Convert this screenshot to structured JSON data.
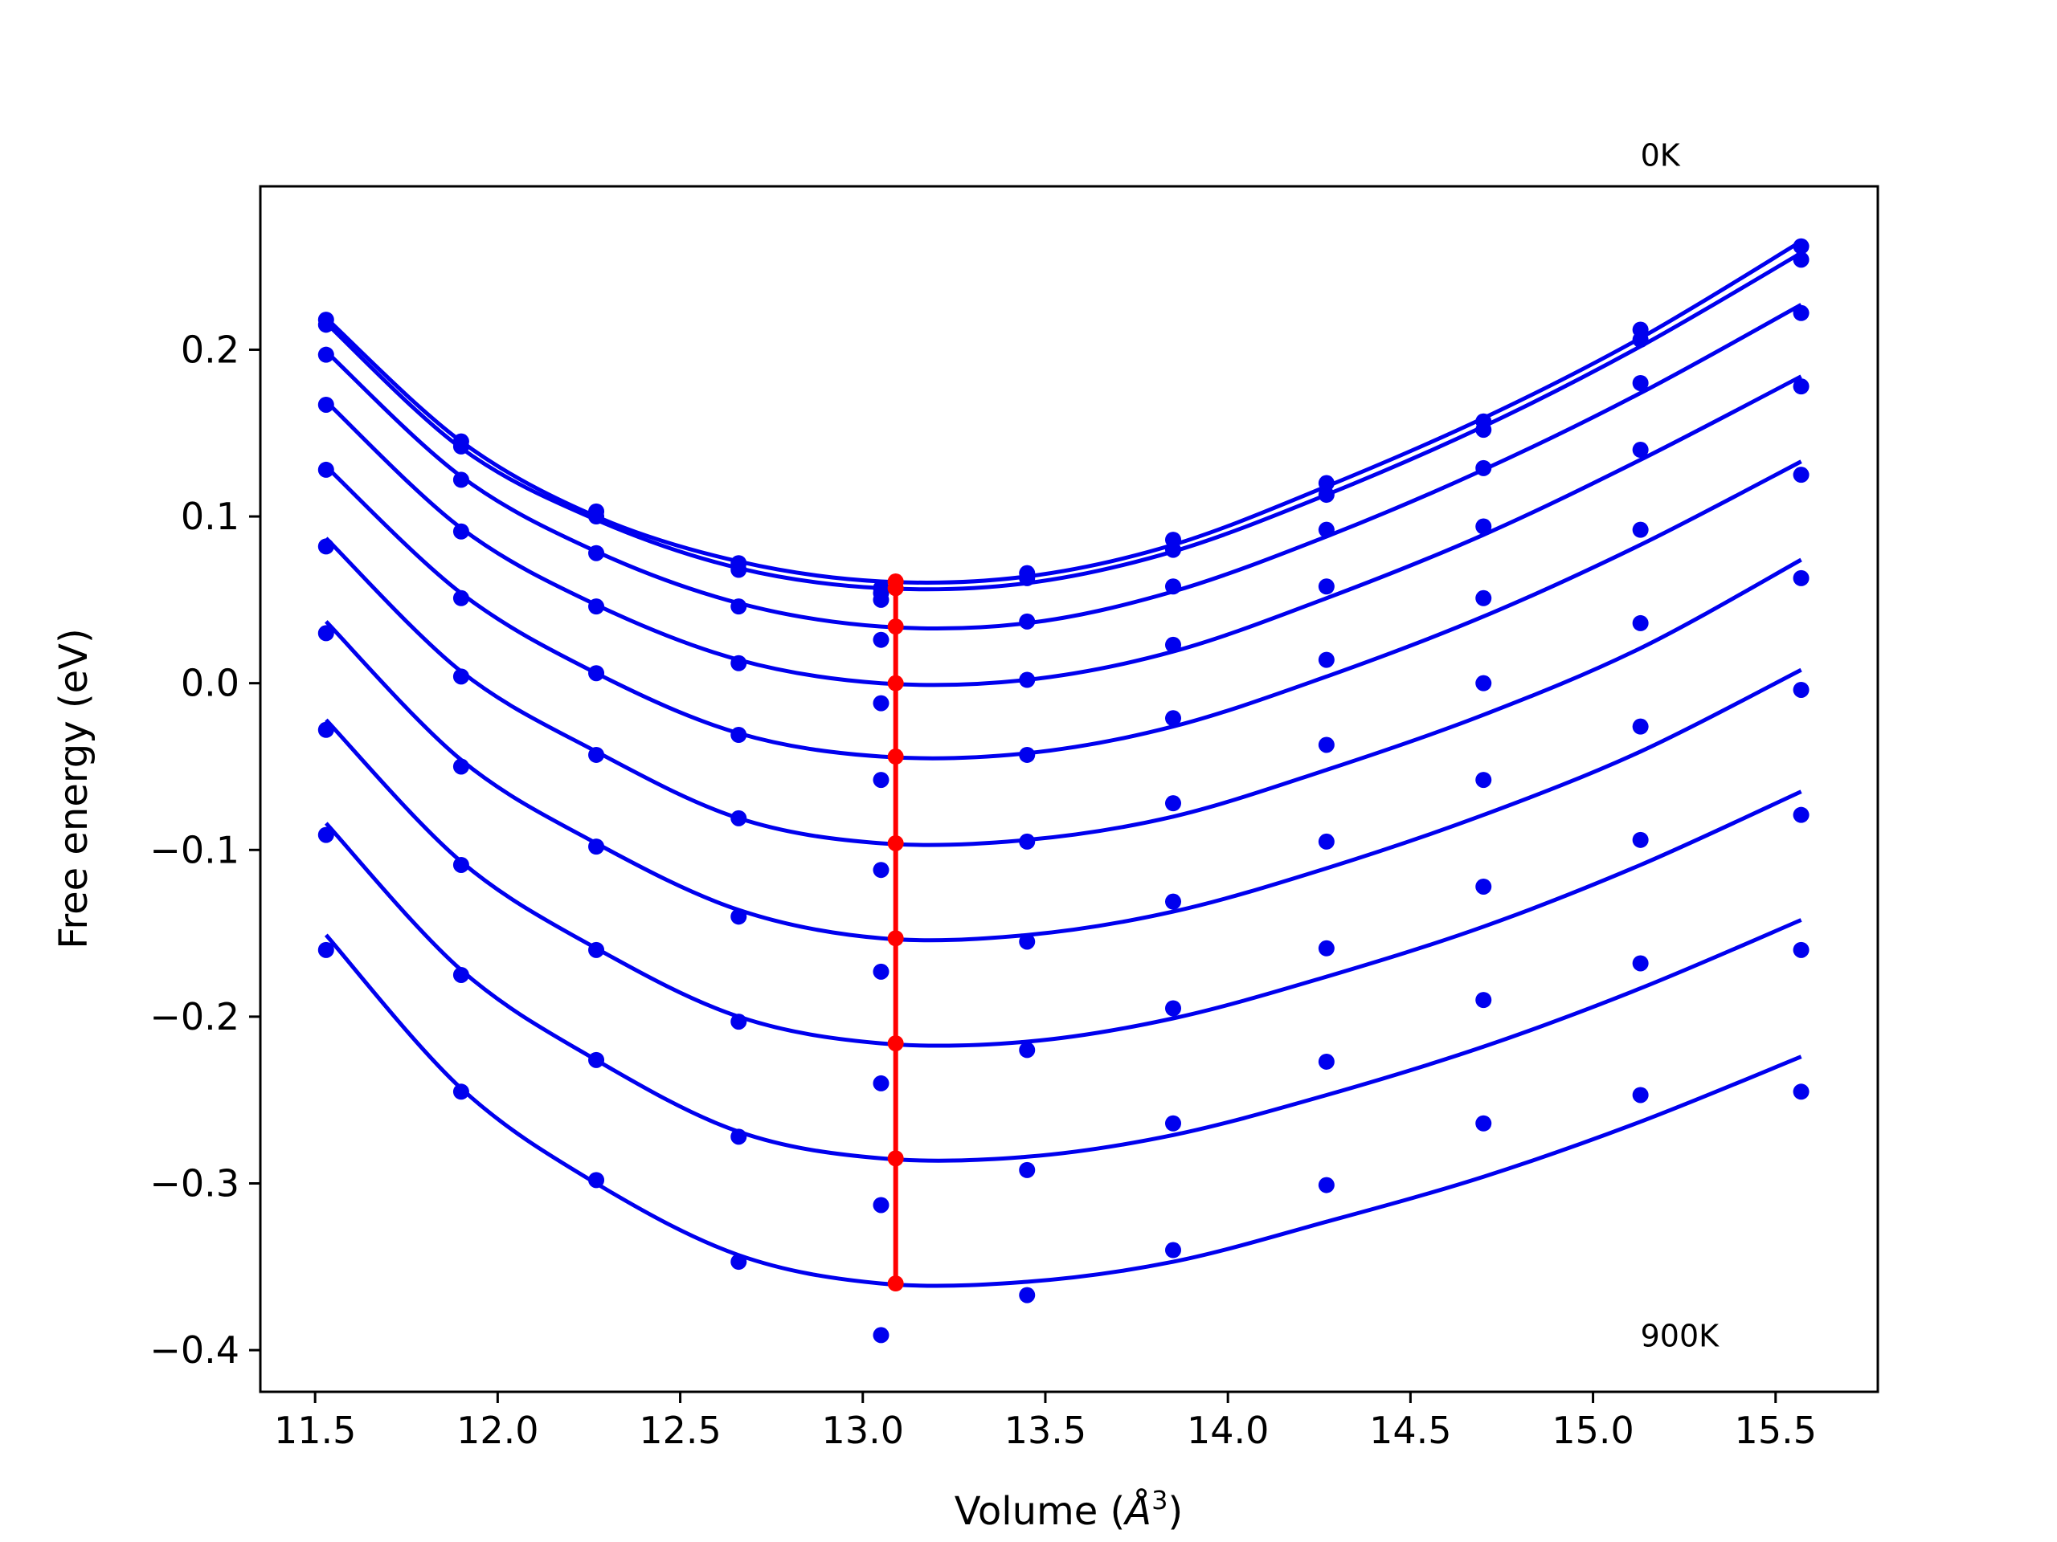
{
  "chart_data": {
    "type": "line",
    "title": "",
    "xlabel_text": "Volume (",
    "xlabel_symbol": "Å",
    "xlabel_exp": "3",
    "xlabel_close": ")",
    "ylabel": "Free energy (eV)",
    "xlim": [
      11.35,
      15.78
    ],
    "ylim": [
      -0.425,
      0.298
    ],
    "xticks": [
      11.5,
      12.0,
      12.5,
      13.0,
      13.5,
      14.0,
      14.5,
      15.0,
      15.5
    ],
    "xtick_labels": [
      "11.5",
      "12.0",
      "12.5",
      "13.0",
      "13.5",
      "14.0",
      "14.5",
      "15.0",
      "15.5"
    ],
    "yticks": [
      -0.4,
      -0.3,
      -0.2,
      -0.1,
      0.0,
      0.1,
      0.2
    ],
    "ytick_labels": [
      "−0.4",
      "−0.3",
      "−0.2",
      "−0.1",
      "0.0",
      "0.1",
      "0.2"
    ],
    "grid": false,
    "annotations": [
      {
        "text": "0K",
        "x": 15.13,
        "y": 0.317
      },
      {
        "text": "900K",
        "x": 15.13,
        "y": -0.391
      }
    ],
    "colors": {
      "series": "#0000ee",
      "minimum": "#ff0000"
    },
    "volumes": [
      11.53,
      11.9,
      12.27,
      12.66,
      13.05,
      13.45,
      13.85,
      14.27,
      14.7,
      15.13,
      15.57
    ],
    "series": [
      {
        "points": [
          0.218,
          0.145,
          0.103,
          0.072,
          0.057,
          0.066,
          0.086,
          0.12,
          0.157,
          0.212,
          0.262
        ],
        "fit": [
          0.219,
          0.145,
          0.1,
          0.073,
          0.061,
          0.064,
          0.083,
          0.118,
          0.159,
          0.207,
          0.265
        ],
        "min_v": 13.09,
        "min_f": 0.061
      },
      {
        "points": [
          0.215,
          0.142,
          0.1,
          0.068,
          0.054,
          0.063,
          0.08,
          0.113,
          0.152,
          0.206,
          0.254
        ],
        "fit": [
          0.216,
          0.141,
          0.098,
          0.069,
          0.057,
          0.06,
          0.079,
          0.113,
          0.154,
          0.202,
          0.258
        ],
        "min_v": 13.09,
        "min_f": 0.057
      },
      {
        "points": [
          0.197,
          0.122,
          0.078,
          0.046,
          0.05,
          0.037,
          0.058,
          0.092,
          0.129,
          0.18,
          0.222
        ],
        "fit": [
          0.199,
          0.124,
          0.079,
          0.048,
          0.034,
          0.036,
          0.055,
          0.088,
          0.128,
          0.174,
          0.227
        ],
        "min_v": 13.09,
        "min_f": 0.034
      },
      {
        "points": [
          0.167,
          0.091,
          0.046,
          0.012,
          0.026,
          0.002,
          0.023,
          0.058,
          0.094,
          0.14,
          0.178
        ],
        "fit": [
          0.169,
          0.093,
          0.047,
          0.014,
          0.0,
          0.002,
          0.019,
          0.051,
          0.089,
          0.134,
          0.184
        ],
        "min_v": 13.09,
        "min_f": 0.0
      },
      {
        "points": [
          0.128,
          0.051,
          0.006,
          -0.031,
          -0.012,
          -0.043,
          -0.021,
          0.014,
          0.051,
          0.092,
          0.125
        ],
        "fit": [
          0.13,
          0.054,
          0.006,
          -0.03,
          -0.044,
          -0.042,
          -0.026,
          0.004,
          0.04,
          0.083,
          0.133
        ],
        "min_v": 13.09,
        "min_f": -0.044
      },
      {
        "points": [
          0.082,
          0.004,
          -0.043,
          -0.081,
          -0.058,
          -0.095,
          -0.072,
          -0.037,
          0.0,
          0.036,
          0.063
        ],
        "fit": [
          0.087,
          0.007,
          -0.041,
          -0.081,
          -0.096,
          -0.094,
          -0.08,
          -0.052,
          -0.019,
          0.021,
          0.074
        ],
        "min_v": 13.09,
        "min_f": -0.096
      },
      {
        "points": [
          0.03,
          -0.05,
          -0.098,
          -0.14,
          -0.112,
          -0.155,
          -0.131,
          -0.095,
          -0.058,
          -0.026,
          -0.004
        ],
        "fit": [
          0.037,
          -0.046,
          -0.096,
          -0.136,
          -0.153,
          -0.151,
          -0.137,
          -0.111,
          -0.079,
          -0.041,
          0.008
        ],
        "min_v": 13.09,
        "min_f": -0.153
      },
      {
        "points": [
          -0.028,
          -0.109,
          -0.16,
          -0.203,
          -0.173,
          -0.22,
          -0.195,
          -0.159,
          -0.122,
          -0.094,
          -0.079
        ],
        "fit": [
          -0.022,
          -0.107,
          -0.159,
          -0.2,
          -0.216,
          -0.215,
          -0.201,
          -0.176,
          -0.146,
          -0.109,
          -0.065
        ],
        "min_v": 13.09,
        "min_f": -0.216
      },
      {
        "points": [
          -0.091,
          -0.175,
          -0.226,
          -0.272,
          -0.24,
          -0.292,
          -0.264,
          -0.227,
          -0.19,
          -0.168,
          -0.16
        ],
        "fit": [
          -0.084,
          -0.172,
          -0.226,
          -0.269,
          -0.285,
          -0.284,
          -0.271,
          -0.247,
          -0.218,
          -0.183,
          -0.142
        ],
        "min_v": 13.09,
        "min_f": -0.285
      },
      {
        "points": [
          -0.16,
          -0.245,
          -0.298,
          -0.347,
          -0.313,
          -0.367,
          -0.34,
          -0.301,
          -0.264,
          -0.247,
          -0.245
        ],
        "fit": [
          -0.151,
          -0.243,
          -0.3,
          -0.343,
          -0.36,
          -0.359,
          -0.347,
          -0.323,
          -0.296,
          -0.263,
          -0.224
        ],
        "min_v": 13.09,
        "min_f": -0.36
      },
      {
        "points": [
          null,
          null,
          null,
          null,
          -0.391,
          null,
          null,
          null,
          null,
          null,
          null
        ],
        "fit": [],
        "min_v": null,
        "min_f": null
      }
    ]
  }
}
